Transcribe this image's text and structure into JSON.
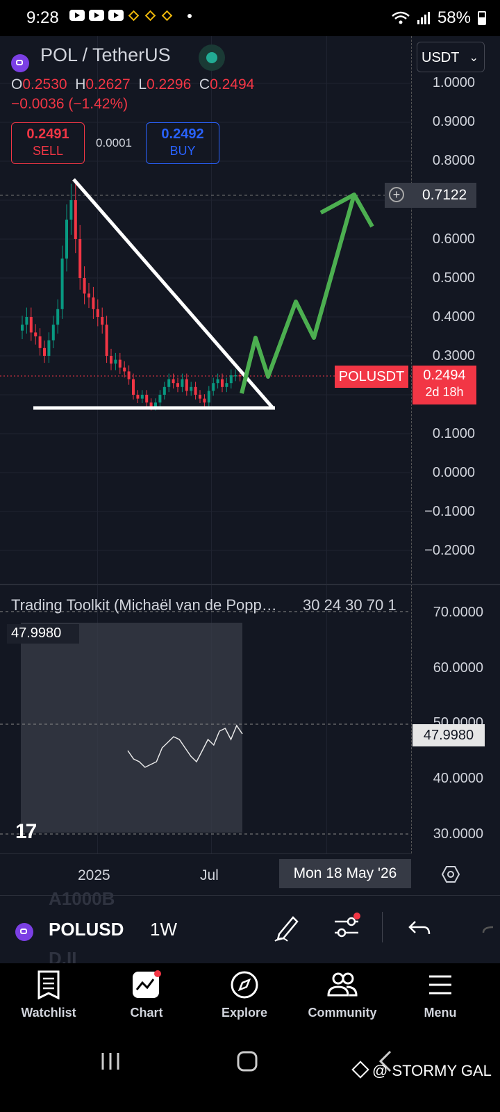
{
  "status_bar": {
    "time": "9:28",
    "battery": "58%"
  },
  "legend": {
    "title": "POL / TetherUS",
    "open_label": "O",
    "open": "0.2530",
    "high_label": "H",
    "high": "0.2627",
    "low_label": "L",
    "low": "0.2296",
    "close_label": "C",
    "close": "0.2494",
    "change": "−0.0036 (−1.42%)"
  },
  "trade": {
    "sell_price": "0.2491",
    "sell_label": "SELL",
    "spread": "0.0001",
    "buy_price": "0.2492",
    "buy_label": "BUY"
  },
  "currency_dropdown": "USDT",
  "price_axis": [
    "1.0000",
    "0.9000",
    "0.8000",
    "0.6000",
    "0.5000",
    "0.4000",
    "0.3000",
    "0.1000",
    "0.0000",
    "−0.1000",
    "−0.2000"
  ],
  "crosshair_price": "0.7122",
  "symbol_tag": "POLUSDT",
  "last_price": "0.2494",
  "countdown": "2d 18h",
  "indicator": {
    "title": "Trading Toolkit (Michaël van de Popp…",
    "params": "30 24 30 70 1",
    "value": "47.9980",
    "axis": [
      "70.0000",
      "60.0000",
      "50.0000",
      "40.0000",
      "30.0000"
    ],
    "right_value": "47.9980"
  },
  "time_axis": {
    "labels": [
      "2025",
      "Jul"
    ],
    "crosshair_date": "Mon 18 May '26"
  },
  "toolbar": {
    "symbol": "POLUSD",
    "interval": "1W",
    "ghost_top": "A1000B",
    "ghost_bottom": "D.II"
  },
  "bottom_nav": [
    {
      "label": "Watchlist",
      "icon": "watchlist-icon"
    },
    {
      "label": "Chart",
      "icon": "chart-icon"
    },
    {
      "label": "Explore",
      "icon": "compass-icon"
    },
    {
      "label": "Community",
      "icon": "community-icon"
    },
    {
      "label": "Menu",
      "icon": "menu-icon"
    }
  ],
  "watermark": "@ STORMY GAL",
  "colors": {
    "background": "#131722",
    "bear": "#f23645",
    "bull": "#089981",
    "buy": "#2962ff",
    "annotation_arrow": "#4caf50"
  },
  "chart_data": {
    "type": "candlestick",
    "symbol": "POLUSDT",
    "interval": "1W",
    "ylim": [
      -0.25,
      1.05
    ],
    "ohlc_last": {
      "open": 0.253,
      "high": 0.2627,
      "low": 0.2296,
      "close": 0.2494
    },
    "close_series": [
      0.38,
      0.4,
      0.36,
      0.35,
      0.32,
      0.3,
      0.34,
      0.38,
      0.42,
      0.55,
      0.65,
      0.7,
      0.6,
      0.5,
      0.46,
      0.45,
      0.42,
      0.4,
      0.38,
      0.3,
      0.28,
      0.29,
      0.27,
      0.26,
      0.24,
      0.2,
      0.19,
      0.2,
      0.18,
      0.17,
      0.18,
      0.2,
      0.22,
      0.24,
      0.23,
      0.22,
      0.24,
      0.21,
      0.22,
      0.2,
      0.19,
      0.18,
      0.21,
      0.23,
      0.24,
      0.22,
      0.23,
      0.25,
      0.25,
      0.2494
    ],
    "indicator_series": [
      45.0,
      43.5,
      43.0,
      42.0,
      42.5,
      43.0,
      45.5,
      46.5,
      47.5,
      47.0,
      45.5,
      44.0,
      43.0,
      45.0,
      47.0,
      46.0,
      48.5,
      49.0,
      47.0,
      49.5,
      48.0
    ]
  }
}
